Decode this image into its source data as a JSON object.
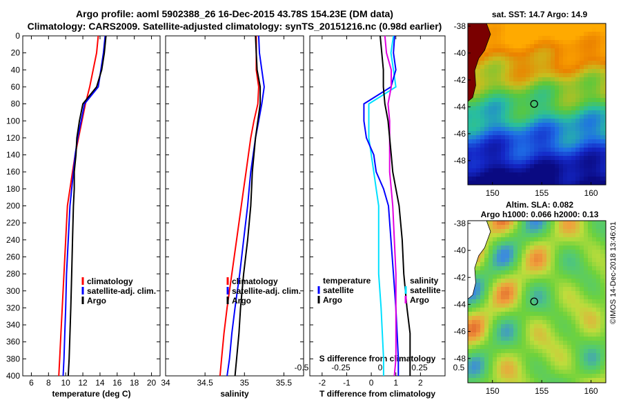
{
  "header": {
    "title_line1": "Argo profile: aoml 5902388_26 16-Dec-2015 43.78S 154.23E (DM data)",
    "title_line2": "Climatology: CARS2009. Satellite-adjusted climatology: synTS_20151216.nc (0.98d earlier)"
  },
  "colors": {
    "climatology": "#ff0000",
    "satellite": "#0000ff",
    "argo": "#000000",
    "t_diff": "#00e0ff",
    "s_diff": "#e000e0"
  },
  "chart_data": [
    {
      "type": "line",
      "xlabel": "temperature (deg C)",
      "ylabel": "",
      "xlim": [
        5,
        21
      ],
      "ylim": [
        0,
        400
      ],
      "xticks": [
        "6",
        "8",
        "10",
        "12",
        "14",
        "16",
        "18",
        "20"
      ],
      "xtick_values": [
        6,
        8,
        10,
        12,
        14,
        16,
        18,
        20
      ],
      "yticks": [
        "0",
        "20",
        "40",
        "60",
        "80",
        "100",
        "120",
        "140",
        "160",
        "180",
        "200",
        "220",
        "240",
        "260",
        "280",
        "300",
        "320",
        "340",
        "360",
        "380",
        "400"
      ],
      "ytick_values": [
        0,
        20,
        40,
        60,
        80,
        100,
        120,
        140,
        160,
        180,
        200,
        220,
        240,
        260,
        280,
        300,
        320,
        340,
        360,
        380,
        400
      ],
      "legend": [
        "climatology",
        "satellite-adj. clim.",
        "Argo"
      ],
      "legend_placement": "lower-right",
      "series": [
        {
          "name": "climatology",
          "x": [
            13.8,
            13.6,
            13.2,
            12.8,
            12.3,
            11.9,
            11.5,
            11.1,
            10.8,
            10.5,
            10.2,
            10.0,
            9.8,
            9.6,
            9.45,
            9.3,
            9.2
          ],
          "y": [
            0,
            20,
            40,
            60,
            80,
            100,
            120,
            140,
            160,
            180,
            200,
            240,
            280,
            320,
            350,
            380,
            400
          ]
        },
        {
          "name": "satellite-adj. clim.",
          "x": [
            14.6,
            14.4,
            14.1,
            13.8,
            12.2,
            11.8,
            11.4,
            11.1,
            10.9,
            10.7,
            10.5,
            10.3,
            10.1,
            10.0,
            9.9,
            9.8,
            9.7
          ],
          "y": [
            0,
            20,
            40,
            60,
            80,
            100,
            120,
            140,
            160,
            180,
            200,
            240,
            280,
            320,
            350,
            380,
            400
          ]
        },
        {
          "name": "Argo",
          "x": [
            14.7,
            14.5,
            14.2,
            13.6,
            12.0,
            11.6,
            11.3,
            11.2,
            11.0,
            11.0,
            10.9,
            10.8,
            10.7,
            10.6,
            10.5,
            10.4,
            10.3
          ],
          "y": [
            0,
            20,
            40,
            60,
            80,
            100,
            120,
            140,
            160,
            180,
            200,
            240,
            280,
            320,
            350,
            380,
            400
          ]
        }
      ]
    },
    {
      "type": "line",
      "xlabel": "salinity",
      "xlim": [
        34.0,
        35.75
      ],
      "ylim": [
        0,
        400
      ],
      "xticks": [
        "34",
        "34.5",
        "35",
        "35.5"
      ],
      "xtick_values": [
        34.0,
        34.5,
        35.0,
        35.5
      ],
      "legend": [
        "climatology",
        "satellite-adj. clim.",
        "Argo"
      ],
      "legend_placement": "lower-right",
      "series": [
        {
          "name": "climatology",
          "x": [
            35.15,
            35.15,
            35.15,
            35.18,
            35.17,
            35.12,
            35.08,
            35.05,
            35.02,
            34.99,
            34.96,
            34.9,
            34.84,
            34.78,
            34.74,
            34.71,
            34.69
          ],
          "y": [
            0,
            20,
            40,
            60,
            80,
            100,
            120,
            140,
            160,
            180,
            200,
            240,
            280,
            320,
            350,
            380,
            400
          ]
        },
        {
          "name": "satellite-adj. clim.",
          "x": [
            35.18,
            35.19,
            35.22,
            35.25,
            35.22,
            35.18,
            35.14,
            35.11,
            35.08,
            35.06,
            35.04,
            34.99,
            34.94,
            34.88,
            34.84,
            34.81,
            34.78
          ],
          "y": [
            0,
            20,
            40,
            60,
            80,
            100,
            120,
            140,
            160,
            180,
            200,
            240,
            280,
            320,
            350,
            380,
            400
          ]
        },
        {
          "name": "Argo",
          "x": [
            35.14,
            35.15,
            35.16,
            35.2,
            35.2,
            35.17,
            35.14,
            35.12,
            35.1,
            35.09,
            35.08,
            35.04,
            34.99,
            34.95,
            34.93,
            34.9,
            34.88
          ],
          "y": [
            0,
            20,
            40,
            60,
            80,
            100,
            120,
            140,
            160,
            180,
            200,
            240,
            280,
            320,
            350,
            380,
            400
          ]
        }
      ]
    },
    {
      "type": "line",
      "xlabel": "T difference from climatology",
      "xlabel_top": "S difference from climatology",
      "xlim": [
        -2.5,
        3.0
      ],
      "ylim": [
        0,
        400
      ],
      "xticks": [
        "-2",
        "-1",
        "0",
        "1",
        "2"
      ],
      "xtick_values": [
        -2,
        -1,
        0,
        1,
        2
      ],
      "s_xticks": [
        "-0.5",
        "-0.25",
        "0",
        "0.25",
        "0.5"
      ],
      "s_xtick_values": [
        -0.5,
        -0.25,
        0,
        0.25,
        0.5
      ],
      "legend_temperature_heading": "temperature",
      "legend_salinity_heading": "salinity",
      "legend_temperature": [
        "satellite",
        "Argo"
      ],
      "legend_salinity": [
        "satellite",
        "Argo"
      ],
      "legend_placement": "lower",
      "series": [
        {
          "name": "T diff satellite",
          "x": [
            0.9,
            0.8,
            0.9,
            1.0,
            -0.1,
            -0.1,
            -0.1,
            0.0,
            0.1,
            0.2,
            0.3,
            0.3,
            0.3,
            0.4,
            0.45,
            0.5,
            0.5
          ],
          "y": [
            0,
            20,
            40,
            60,
            80,
            100,
            120,
            140,
            160,
            180,
            200,
            240,
            280,
            320,
            350,
            380,
            400
          ]
        },
        {
          "name": "T diff Argo",
          "x": [
            0.95,
            0.9,
            1.0,
            0.8,
            -0.3,
            -0.3,
            -0.2,
            0.1,
            0.2,
            0.5,
            0.7,
            0.8,
            0.9,
            1.0,
            1.05,
            1.1,
            1.1
          ],
          "y": [
            0,
            20,
            40,
            60,
            80,
            100,
            120,
            140,
            160,
            180,
            200,
            240,
            280,
            320,
            350,
            380,
            400
          ]
        },
        {
          "name": "S diff satellite",
          "x": [
            0.03,
            0.04,
            0.07,
            0.07,
            0.05,
            0.06,
            0.06,
            0.06,
            0.06,
            0.07,
            0.08,
            0.09,
            0.1,
            0.1,
            0.1,
            0.1,
            0.09
          ],
          "y": [
            0,
            20,
            40,
            60,
            80,
            100,
            120,
            140,
            160,
            180,
            200,
            240,
            280,
            320,
            350,
            380,
            400
          ]
        },
        {
          "name": "S diff Argo",
          "x": [
            0.0,
            0.01,
            0.02,
            0.02,
            0.03,
            0.05,
            0.06,
            0.07,
            0.08,
            0.1,
            0.12,
            0.14,
            0.15,
            0.17,
            0.19,
            0.19,
            0.19
          ],
          "y": [
            0,
            20,
            40,
            60,
            80,
            100,
            120,
            140,
            160,
            180,
            200,
            240,
            280,
            320,
            350,
            380,
            400
          ]
        }
      ]
    },
    {
      "type": "heatmap",
      "title": "sat. SST: 14.7 Argo: 14.9",
      "xticks": [
        "150",
        "155",
        "160"
      ],
      "yticks": [
        "-38",
        "-40",
        "-42",
        "-44",
        "-46",
        "-48"
      ],
      "xlim": [
        147.5,
        161.5
      ],
      "ylim": [
        -49.8,
        -37.8
      ],
      "marker_lon": 154.23,
      "marker_lat": -43.78
    },
    {
      "type": "heatmap",
      "title_line1": "Altim. SLA: 0.082",
      "title_line2": "Argo h1000: 0.066 h2000: 0.13",
      "xticks": [
        "150",
        "155",
        "160"
      ],
      "yticks": [
        "-38",
        "-40",
        "-42",
        "-44",
        "-46",
        "-48"
      ],
      "xlim": [
        147.5,
        161.5
      ],
      "ylim": [
        -49.8,
        -37.8
      ],
      "marker_lon": 154.23,
      "marker_lat": -43.78
    }
  ],
  "footer": {
    "credit": "©IMOS 14-Dec-2018 13:46:01"
  }
}
